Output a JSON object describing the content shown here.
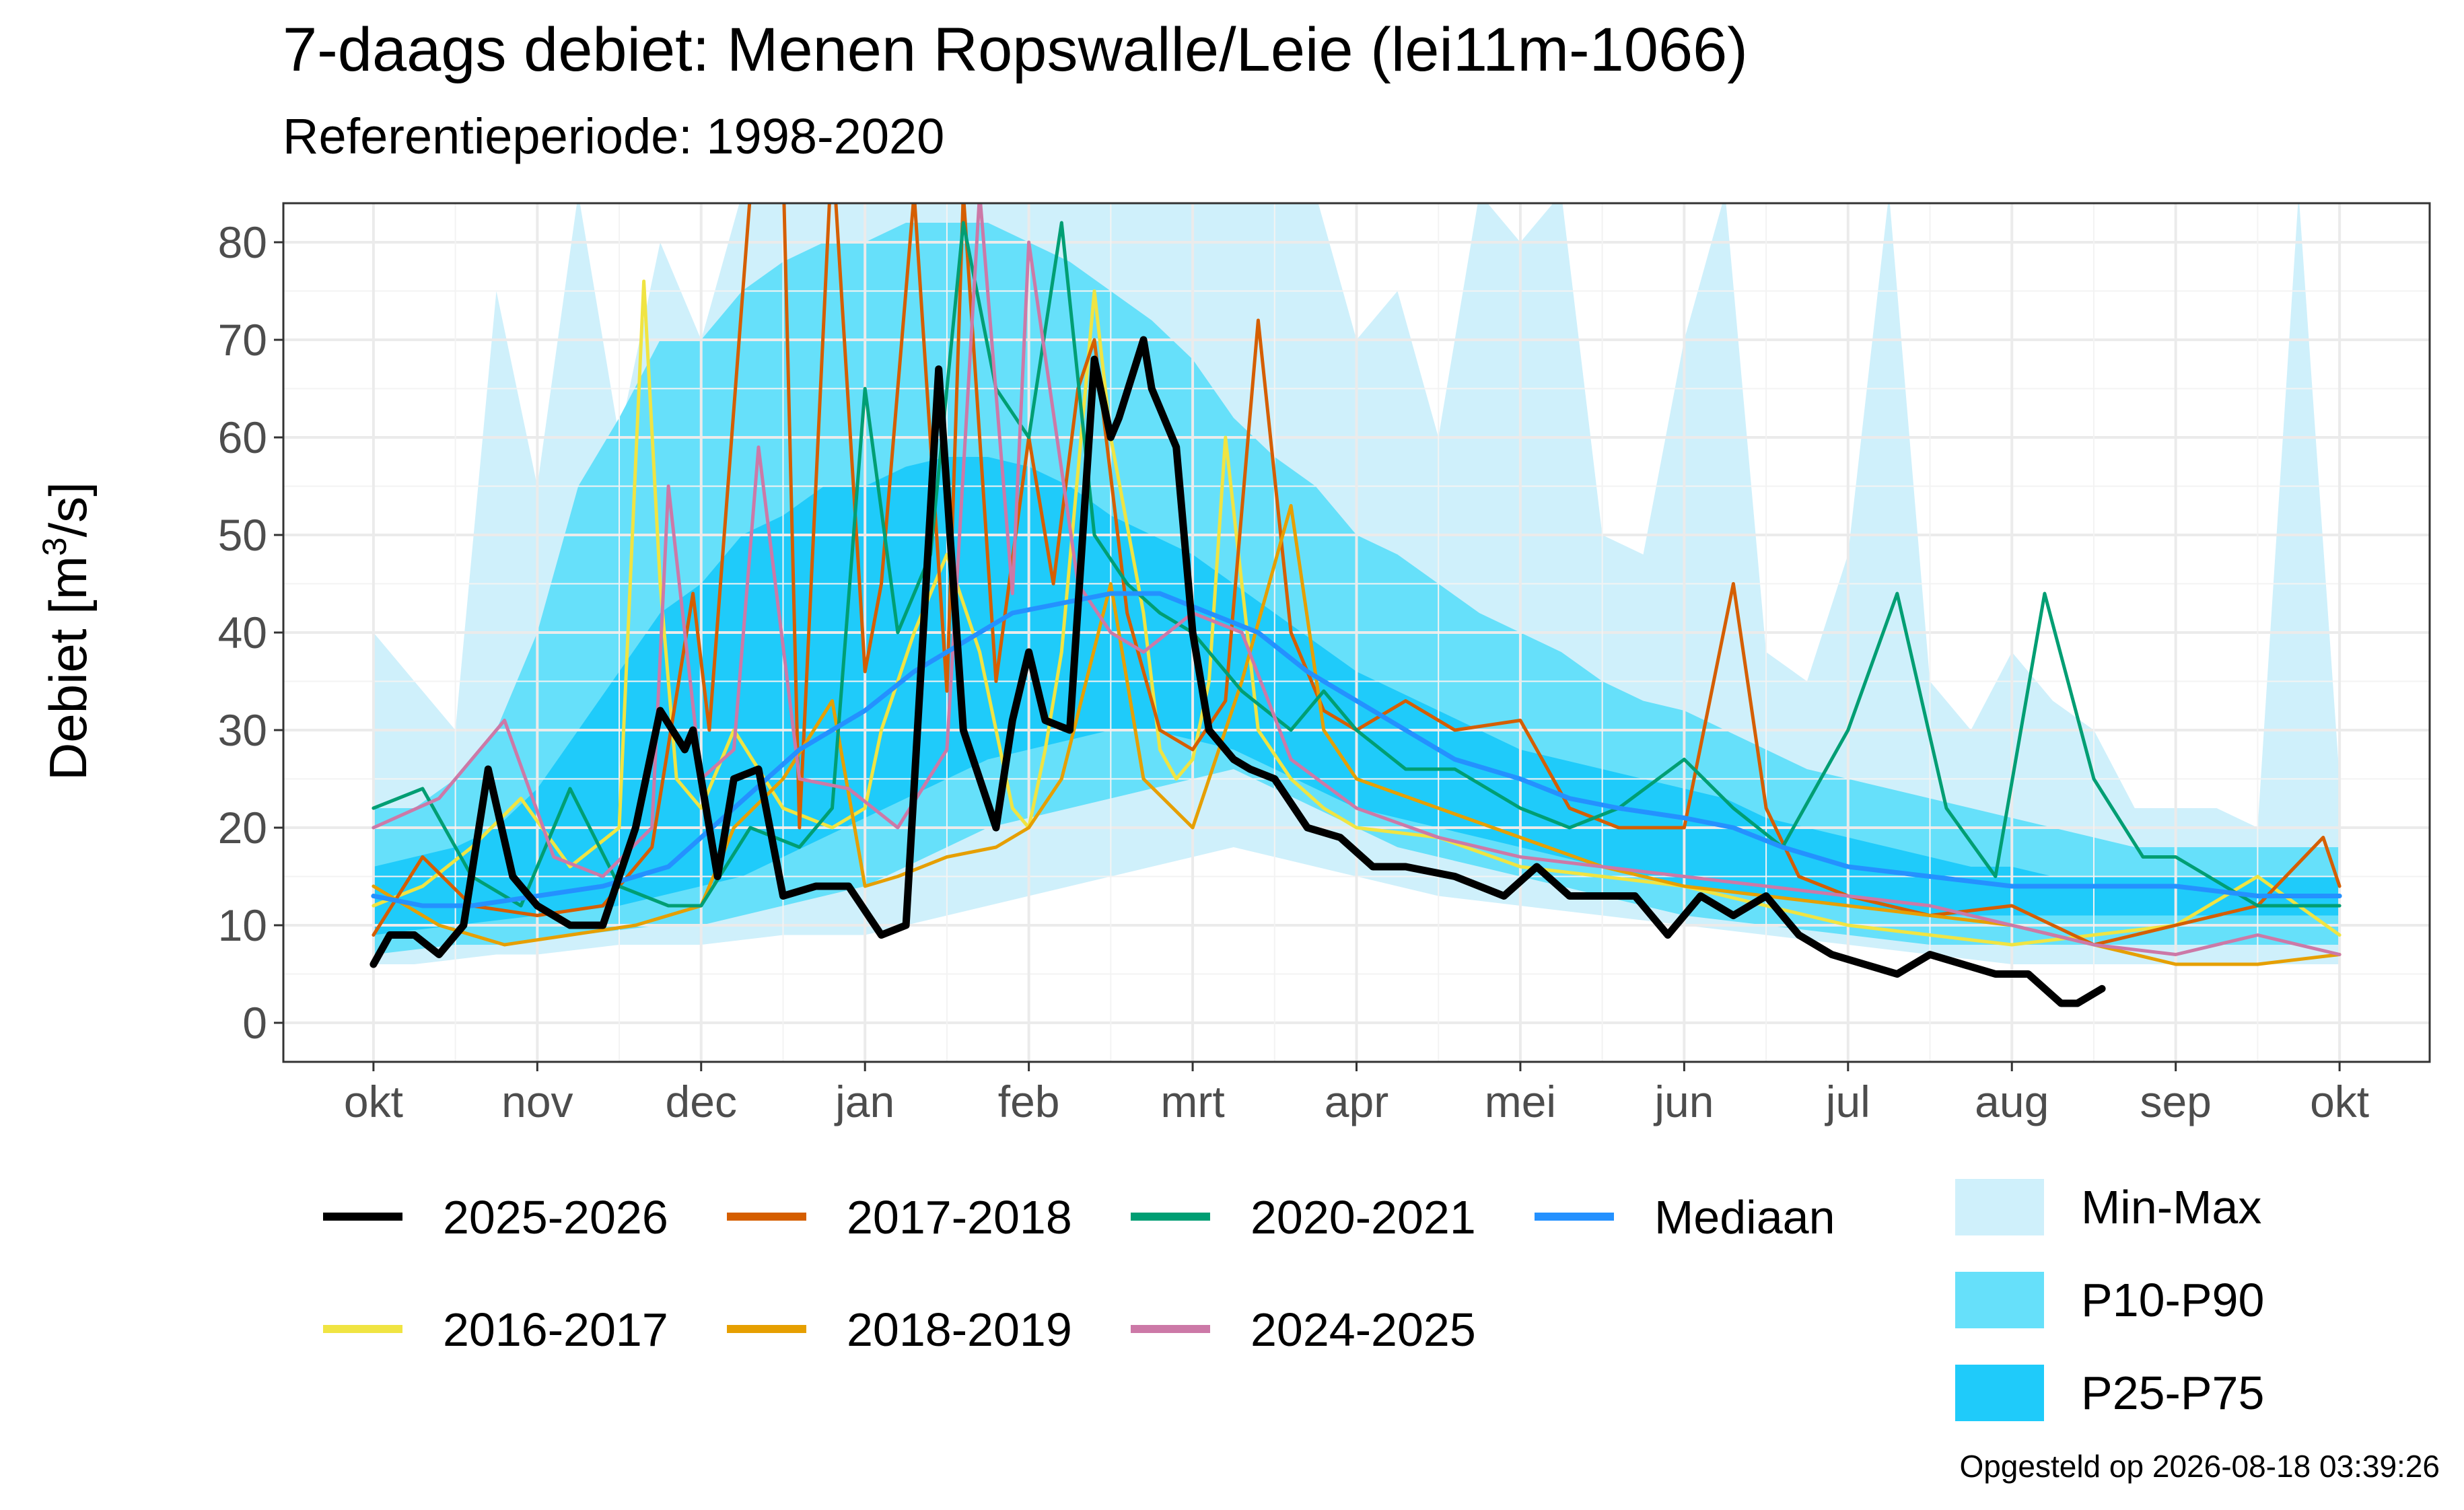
{
  "title": "7-daags debiet: Menen Ropswalle/Leie (lei11m-1066)",
  "subtitle": "Referentieperiode: 1998-2020",
  "footer": "Opgesteld op 2026-08-18 03:39:26",
  "chart_data": {
    "type": "line",
    "ylabel": "Debiet [m³/s]",
    "ylabel_base": "Debiet [m",
    "ylabel_sup": "3",
    "ylabel_end": "/s]",
    "ylim": [
      -4,
      84
    ],
    "yticks": [
      0,
      10,
      20,
      30,
      40,
      50,
      60,
      70,
      80
    ],
    "xlim": [
      -0.55,
      12.55
    ],
    "xticks": [
      0,
      1,
      2,
      3,
      4,
      5,
      6,
      7,
      8,
      9,
      10,
      11,
      12
    ],
    "xtick_labels": [
      "okt",
      "nov",
      "dec",
      "jan",
      "feb",
      "mrt",
      "apr",
      "mei",
      "jun",
      "jul",
      "aug",
      "sep",
      "okt"
    ],
    "grid": true,
    "x_unit": "months since 1 October",
    "bands": [
      {
        "name": "Min-Max",
        "color": "#cff0fb",
        "x": [
          0,
          0.25,
          0.5,
          0.75,
          1,
          1.25,
          1.5,
          1.75,
          2,
          2.25,
          2.5,
          2.75,
          3,
          3.25,
          3.5,
          3.75,
          4,
          4.25,
          4.5,
          4.75,
          5,
          5.25,
          5.5,
          5.75,
          6,
          6.25,
          6.5,
          6.75,
          7,
          7.25,
          7.5,
          7.75,
          8,
          8.25,
          8.5,
          8.75,
          9,
          9.25,
          9.5,
          9.75,
          10,
          10.25,
          10.5,
          10.75,
          11,
          11.25,
          11.5,
          11.75,
          12
        ],
        "lower": [
          6,
          6,
          6.5,
          7,
          7,
          7.5,
          8,
          8,
          8,
          8.5,
          9,
          9,
          9,
          10,
          11,
          12,
          13,
          14,
          15,
          16,
          17,
          18,
          17,
          16,
          15,
          14,
          13,
          12.5,
          12,
          11.5,
          11,
          10.5,
          10,
          9.5,
          9,
          8.5,
          8,
          7.5,
          7,
          6.5,
          6,
          6,
          6,
          6,
          6,
          6,
          6,
          6,
          6
        ],
        "upper": [
          40,
          35,
          30,
          75,
          55,
          85,
          60,
          80,
          70,
          85,
          85,
          85,
          85,
          85,
          85,
          85,
          85,
          85,
          85,
          85,
          85,
          85,
          85,
          85,
          70,
          75,
          60,
          85,
          80,
          85,
          50,
          48,
          70,
          85,
          38,
          35,
          48,
          85,
          35,
          30,
          38,
          33,
          30,
          22,
          22,
          22,
          20,
          85,
          25
        ]
      },
      {
        "name": "P10-P90",
        "color": "#66e0fa",
        "x": [
          0,
          0.25,
          0.5,
          0.75,
          1,
          1.25,
          1.5,
          1.75,
          2,
          2.25,
          2.5,
          2.75,
          3,
          3.25,
          3.5,
          3.75,
          4,
          4.25,
          4.5,
          4.75,
          5,
          5.25,
          5.5,
          5.75,
          6,
          6.25,
          6.5,
          6.75,
          7,
          7.25,
          7.5,
          7.75,
          8,
          8.25,
          8.5,
          8.75,
          9,
          9.25,
          9.5,
          9.75,
          10,
          10.25,
          10.5,
          10.75,
          11,
          11.25,
          11.5,
          11.75,
          12
        ],
        "lower": [
          7,
          7.5,
          8,
          8,
          8.5,
          9,
          9.5,
          10,
          10,
          11,
          12,
          13,
          14,
          16,
          18,
          20,
          21,
          22,
          23,
          24,
          25,
          26,
          24,
          22,
          20,
          18,
          17,
          16,
          15,
          14,
          13,
          12,
          11,
          10.5,
          10,
          9.5,
          9,
          8.5,
          8,
          8,
          8,
          8,
          8,
          8,
          8,
          8,
          8,
          8,
          8
        ],
        "upper": [
          22,
          22,
          25,
          30,
          40,
          55,
          62,
          70,
          70,
          75,
          78,
          80,
          80,
          82,
          82,
          82,
          80,
          78,
          75,
          72,
          68,
          62,
          58,
          55,
          50,
          48,
          45,
          42,
          40,
          38,
          35,
          33,
          32,
          30,
          28,
          26,
          25,
          24,
          23,
          22,
          21,
          20,
          19,
          18,
          18,
          18,
          18,
          18,
          18
        ]
      },
      {
        "name": "P25-P75",
        "color": "#1fcbfa",
        "x": [
          0,
          0.25,
          0.5,
          0.75,
          1,
          1.25,
          1.5,
          1.75,
          2,
          2.25,
          2.5,
          2.75,
          3,
          3.25,
          3.5,
          3.75,
          4,
          4.25,
          4.5,
          4.75,
          5,
          5.25,
          5.5,
          5.75,
          6,
          6.25,
          6.5,
          6.75,
          7,
          7.25,
          7.5,
          7.75,
          8,
          8.25,
          8.5,
          8.75,
          9,
          9.25,
          9.5,
          9.75,
          10,
          10.25,
          10.5,
          10.75,
          11,
          11.25,
          11.5,
          11.75,
          12
        ],
        "lower": [
          9,
          9.5,
          10,
          10.5,
          11,
          11.5,
          12,
          13,
          14,
          15,
          17,
          19,
          21,
          23,
          25,
          27,
          28,
          29,
          30,
          30,
          29,
          28,
          26,
          24,
          22,
          21,
          20,
          19,
          18,
          17,
          16,
          15,
          14,
          13.5,
          13,
          12.5,
          12,
          11.5,
          11,
          11,
          11,
          11,
          11,
          11,
          11,
          11,
          11,
          11,
          11
        ],
        "upper": [
          16,
          17,
          18,
          20,
          24,
          30,
          36,
          42,
          45,
          50,
          52,
          55,
          55,
          57,
          58,
          58,
          57,
          55,
          52,
          50,
          48,
          45,
          42,
          39,
          36,
          34,
          32,
          30,
          28,
          27,
          26,
          25,
          24,
          23,
          21,
          20,
          19,
          18,
          17,
          16,
          16,
          15,
          15,
          15,
          15,
          15,
          15,
          15,
          15
        ]
      }
    ],
    "series": [
      {
        "name": "2016-2017",
        "color": "#f0e442",
        "width": 5,
        "x": [
          0,
          0.3,
          0.6,
          0.9,
          1.2,
          1.5,
          1.65,
          1.75,
          1.85,
          2.0,
          2.2,
          2.5,
          2.8,
          3.0,
          3.1,
          3.3,
          3.5,
          3.7,
          3.9,
          4.0,
          4.1,
          4.2,
          4.4,
          4.5,
          4.7,
          4.8,
          4.9,
          5.0,
          5.1,
          5.2,
          5.4,
          5.6,
          5.8,
          6.0,
          6.5,
          7.0,
          7.5,
          8.0,
          8.5,
          9.0,
          9.5,
          10.0,
          10.5,
          11.0,
          11.5,
          12
        ],
        "y": [
          12,
          14,
          18,
          23,
          16,
          20,
          76,
          45,
          25,
          22,
          30,
          22,
          20,
          22,
          30,
          40,
          48,
          38,
          22,
          20,
          28,
          38,
          75,
          60,
          42,
          28,
          25,
          27,
          35,
          60,
          30,
          25,
          22,
          20,
          19,
          16,
          15,
          14,
          12,
          10,
          9,
          8,
          9,
          10,
          15,
          9
        ]
      },
      {
        "name": "2017-2018",
        "color": "#d55e00",
        "width": 5,
        "x": [
          0,
          0.3,
          0.6,
          1.0,
          1.4,
          1.7,
          1.95,
          2.05,
          2.3,
          2.5,
          2.6,
          2.8,
          3.0,
          3.1,
          3.3,
          3.5,
          3.6,
          3.8,
          4.0,
          4.15,
          4.3,
          4.4,
          4.6,
          4.8,
          5.0,
          5.2,
          5.4,
          5.6,
          5.8,
          6.0,
          6.3,
          6.6,
          7.0,
          7.3,
          7.6,
          8.0,
          8.3,
          8.5,
          8.7,
          9.0,
          9.5,
          10.0,
          10.5,
          11.0,
          11.5,
          11.9,
          12
        ],
        "y": [
          9,
          17,
          12,
          11,
          12,
          18,
          44,
          30,
          85,
          88,
          20,
          90,
          36,
          45,
          85,
          34,
          85,
          35,
          60,
          45,
          65,
          70,
          42,
          30,
          28,
          33,
          72,
          40,
          32,
          30,
          33,
          30,
          31,
          22,
          20,
          20,
          45,
          22,
          15,
          13,
          11,
          12,
          8,
          10,
          12,
          19,
          14
        ]
      },
      {
        "name": "2018-2019",
        "color": "#e69f00",
        "width": 5,
        "x": [
          0,
          0.4,
          0.8,
          1.2,
          1.6,
          2.0,
          2.2,
          2.5,
          2.8,
          3.0,
          3.2,
          3.5,
          3.8,
          4.0,
          4.2,
          4.5,
          4.7,
          5.0,
          5.3,
          5.6,
          5.8,
          6.0,
          6.5,
          7.0,
          7.5,
          8.0,
          8.5,
          9.0,
          9.5,
          10.0,
          10.5,
          11.0,
          11.5,
          12
        ],
        "y": [
          14,
          10,
          8,
          9,
          10,
          12,
          20,
          25,
          33,
          14,
          15,
          17,
          18,
          20,
          25,
          45,
          25,
          20,
          35,
          53,
          30,
          25,
          22,
          19,
          16,
          14,
          13,
          12,
          11,
          10,
          8,
          6,
          6,
          7
        ]
      },
      {
        "name": "2020-2021",
        "color": "#009e73",
        "width": 5,
        "x": [
          0,
          0.3,
          0.6,
          0.9,
          1.2,
          1.5,
          1.8,
          2.0,
          2.3,
          2.6,
          2.8,
          3.0,
          3.2,
          3.4,
          3.6,
          3.8,
          4.0,
          4.2,
          4.4,
          4.6,
          4.8,
          5.0,
          5.3,
          5.6,
          5.8,
          6.0,
          6.3,
          6.6,
          7.0,
          7.3,
          7.6,
          8.0,
          8.3,
          8.6,
          9.0,
          9.3,
          9.6,
          9.9,
          10.2,
          10.5,
          10.8,
          11.0,
          11.5,
          12
        ],
        "y": [
          22,
          24,
          15,
          12,
          24,
          14,
          12,
          12,
          20,
          18,
          22,
          65,
          40,
          48,
          82,
          65,
          60,
          82,
          50,
          45,
          42,
          40,
          34,
          30,
          34,
          30,
          26,
          26,
          22,
          20,
          22,
          27,
          22,
          18,
          30,
          44,
          22,
          15,
          44,
          25,
          17,
          17,
          12,
          12
        ]
      },
      {
        "name": "2024-2025",
        "color": "#cc79a7",
        "width": 5,
        "x": [
          0,
          0.4,
          0.8,
          1.1,
          1.4,
          1.7,
          1.8,
          2.0,
          2.2,
          2.35,
          2.6,
          2.9,
          3.2,
          3.5,
          3.7,
          3.9,
          4.0,
          4.3,
          4.5,
          4.7,
          5.0,
          5.3,
          5.6,
          6.0,
          6.5,
          7.0,
          7.5,
          8.0,
          8.5,
          9.0,
          9.5,
          10.0,
          10.5,
          11.0,
          11.5,
          12
        ],
        "y": [
          20,
          23,
          31,
          17,
          15,
          20,
          55,
          25,
          28,
          59,
          25,
          24,
          20,
          28,
          85,
          44,
          80,
          45,
          40,
          38,
          42,
          40,
          27,
          22,
          19,
          17,
          16,
          15,
          14,
          13,
          12,
          10,
          8,
          7,
          9,
          7
        ]
      },
      {
        "name": "Mediaan",
        "color": "#2491ff",
        "width": 7,
        "x": [
          0,
          0.3,
          0.6,
          1.0,
          1.4,
          1.8,
          2.2,
          2.6,
          3.0,
          3.3,
          3.6,
          3.9,
          4.2,
          4.5,
          4.8,
          5.1,
          5.4,
          5.7,
          6.0,
          6.3,
          6.6,
          7.0,
          7.3,
          7.6,
          8.0,
          8.3,
          8.6,
          9.0,
          9.5,
          10.0,
          10.5,
          11.0,
          11.5,
          12
        ],
        "y": [
          13,
          12,
          12,
          13,
          14,
          16,
          22,
          28,
          32,
          36,
          39,
          42,
          43,
          44,
          44,
          42,
          40,
          36,
          33,
          30,
          27,
          25,
          23,
          22,
          21,
          20,
          18,
          16,
          15,
          14,
          14,
          14,
          13,
          13
        ]
      },
      {
        "name": "2025-2026",
        "color": "#000000",
        "width": 11,
        "x": [
          0,
          0.1,
          0.25,
          0.4,
          0.55,
          0.7,
          0.85,
          1.0,
          1.2,
          1.4,
          1.6,
          1.75,
          1.9,
          1.95,
          2.1,
          2.2,
          2.35,
          2.5,
          2.7,
          2.9,
          3.1,
          3.25,
          3.45,
          3.6,
          3.8,
          3.9,
          4.0,
          4.1,
          4.25,
          4.4,
          4.5,
          4.55,
          4.7,
          4.75,
          4.9,
          5.0,
          5.1,
          5.25,
          5.35,
          5.5,
          5.7,
          5.9,
          6.1,
          6.3,
          6.6,
          6.9,
          7.1,
          7.3,
          7.5,
          7.7,
          7.9,
          8.1,
          8.3,
          8.5,
          8.7,
          8.9,
          9.1,
          9.3,
          9.5,
          9.7,
          9.9,
          10.1,
          10.3,
          10.4,
          10.55
        ],
        "y": [
          6,
          9,
          9,
          7,
          10,
          26,
          15,
          12,
          10,
          10,
          20,
          32,
          28,
          30,
          15,
          25,
          26,
          13,
          14,
          14,
          9,
          10,
          67,
          30,
          20,
          31,
          38,
          31,
          30,
          68,
          60,
          62,
          70,
          65,
          59,
          40,
          30,
          27,
          26,
          25,
          20,
          19,
          16,
          16,
          15,
          13,
          16,
          13,
          13,
          13,
          9,
          13,
          11,
          13,
          9,
          7,
          6,
          5,
          7,
          6,
          5,
          5,
          2,
          2,
          3.5
        ]
      }
    ],
    "legend_lines": [
      {
        "name": "2025-2026",
        "color": "#000000"
      },
      {
        "name": "2017-2018",
        "color": "#d55e00"
      },
      {
        "name": "2020-2021",
        "color": "#009e73"
      },
      {
        "name": "Mediaan",
        "color": "#2491ff"
      },
      {
        "name": "2016-2017",
        "color": "#f0e442"
      },
      {
        "name": "2018-2019",
        "color": "#e69f00"
      },
      {
        "name": "2024-2025",
        "color": "#cc79a7"
      }
    ],
    "legend_bands": [
      {
        "name": "Min-Max",
        "color": "#cff0fb"
      },
      {
        "name": "P10-P90",
        "color": "#66e0fa"
      },
      {
        "name": "P25-P75",
        "color": "#1fcbfa"
      }
    ]
  }
}
